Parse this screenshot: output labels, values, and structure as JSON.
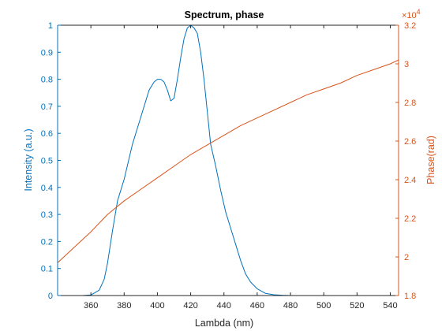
{
  "chart_data": {
    "type": "line",
    "title": "Spectrum, phase",
    "xlabel": "Lambda (nm)",
    "ylabel_left": "Intensity (a.u.)",
    "ylabel_right": "Phase(rad)",
    "right_exponent_label": "×10",
    "right_exponent_power": "4",
    "xlim": [
      340,
      545
    ],
    "ylim_left": [
      0,
      1
    ],
    "ylim_right": [
      1.8,
      3.2
    ],
    "grid": false,
    "colors": {
      "left": "#0072BD",
      "right": "#D95319",
      "axes": "#262626"
    },
    "x_ticks": [
      360,
      380,
      400,
      420,
      440,
      460,
      480,
      500,
      520,
      540
    ],
    "y_left_ticks": [
      "0",
      "0.1",
      "0.2",
      "0.3",
      "0.4",
      "0.5",
      "0.6",
      "0.7",
      "0.8",
      "0.9",
      "1"
    ],
    "y_right_ticks": [
      "1.8",
      "2",
      "2.2",
      "2.4",
      "2.6",
      "2.8",
      "3",
      "3.2"
    ],
    "series": [
      {
        "axis": "left",
        "x": [
          340,
          355,
          360,
          365,
          368,
          370,
          373,
          376,
          380,
          385,
          390,
          395,
          398,
          400,
          402,
          404,
          406,
          408,
          410,
          412,
          414,
          416,
          418,
          420,
          422,
          424,
          426,
          428,
          430,
          432,
          435,
          438,
          441,
          444,
          447,
          450,
          453,
          456,
          460,
          465,
          470,
          475,
          480,
          545
        ],
        "y": [
          0,
          0,
          0.002,
          0.02,
          0.06,
          0.12,
          0.24,
          0.35,
          0.43,
          0.56,
          0.66,
          0.76,
          0.79,
          0.8,
          0.8,
          0.79,
          0.76,
          0.72,
          0.73,
          0.8,
          0.88,
          0.95,
          0.99,
          1.0,
          0.99,
          0.97,
          0.9,
          0.8,
          0.68,
          0.56,
          0.48,
          0.39,
          0.31,
          0.25,
          0.19,
          0.13,
          0.08,
          0.05,
          0.025,
          0.008,
          0.003,
          0.001,
          0,
          0
        ]
      },
      {
        "axis": "right",
        "x": [
          340,
          350,
          360,
          370,
          380,
          390,
          400,
          410,
          420,
          430,
          440,
          450,
          460,
          470,
          480,
          490,
          500,
          510,
          520,
          530,
          540,
          545
        ],
        "y": [
          1.97,
          2.05,
          2.13,
          2.22,
          2.29,
          2.35,
          2.41,
          2.47,
          2.53,
          2.58,
          2.63,
          2.68,
          2.72,
          2.76,
          2.8,
          2.84,
          2.87,
          2.9,
          2.94,
          2.97,
          3.0,
          3.02
        ]
      }
    ]
  }
}
